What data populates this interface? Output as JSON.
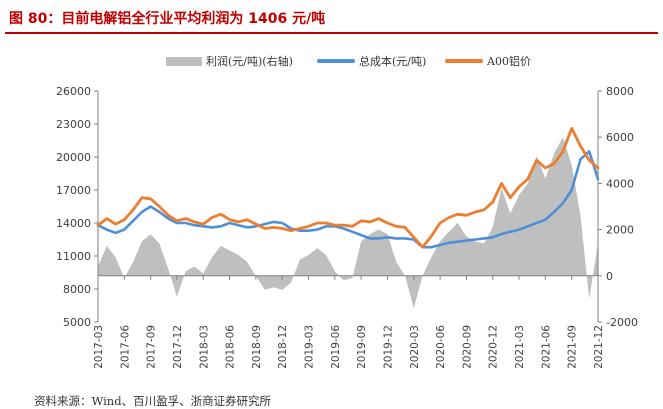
{
  "figure": {
    "title": "图 80：目前电解铝全行业平均利润为 1406 元/吨",
    "source": "资料来源：Wind、百川盈孚、浙商证券研究所"
  },
  "colors": {
    "title_red": "#c00000",
    "profit_area": "#bfbfbf",
    "cost_line": "#4f8fd6",
    "price_line": "#ed7d31",
    "axis": "#808080"
  },
  "chart_data": {
    "type": "line",
    "title": "",
    "xlabel": "",
    "ylabel": "",
    "legend_position": "top-center",
    "grid": false,
    "x_tick_labels": [
      "2017-03",
      "2017-06",
      "2017-09",
      "2017-12",
      "2018-03",
      "2018-06",
      "2018-09",
      "2018-12",
      "2019-03",
      "2019-06",
      "2019-09",
      "2019-12",
      "2020-03",
      "2020-06",
      "2020-09",
      "2020-12",
      "2021-03",
      "2021-06",
      "2021-09",
      "2021-12"
    ],
    "y_left": {
      "min": 5000,
      "max": 26000,
      "ticks": [
        5000,
        8000,
        11000,
        14000,
        17000,
        20000,
        23000,
        26000
      ]
    },
    "y_right": {
      "min": -2000,
      "max": 8000,
      "ticks": [
        -2000,
        0,
        2000,
        4000,
        6000,
        8000
      ]
    },
    "series": [
      {
        "name": "利润(元/吨)(右轴)",
        "type": "area",
        "axis": "right",
        "x": [
          "2017-03",
          "2017-04",
          "2017-05",
          "2017-06",
          "2017-07",
          "2017-08",
          "2017-09",
          "2017-10",
          "2017-11",
          "2017-12",
          "2018-01",
          "2018-02",
          "2018-03",
          "2018-04",
          "2018-05",
          "2018-06",
          "2018-07",
          "2018-08",
          "2018-09",
          "2018-10",
          "2018-11",
          "2018-12",
          "2019-01",
          "2019-02",
          "2019-03",
          "2019-04",
          "2019-05",
          "2019-06",
          "2019-07",
          "2019-08",
          "2019-09",
          "2019-10",
          "2019-11",
          "2019-12",
          "2020-01",
          "2020-02",
          "2020-03",
          "2020-04",
          "2020-05",
          "2020-06",
          "2020-07",
          "2020-08",
          "2020-09",
          "2020-10",
          "2020-11",
          "2020-12",
          "2021-01",
          "2021-02",
          "2021-03",
          "2021-04",
          "2021-05",
          "2021-06",
          "2021-07",
          "2021-08",
          "2021-09",
          "2021-10",
          "2021-11",
          "2021-12"
        ],
        "values": [
          400,
          1300,
          800,
          -100,
          600,
          1500,
          1800,
          1400,
          300,
          -900,
          200,
          400,
          100,
          800,
          1300,
          1100,
          900,
          600,
          0,
          -600,
          -500,
          -600,
          -300,
          700,
          900,
          1200,
          900,
          200,
          -200,
          -100,
          1500,
          1800,
          2000,
          1800,
          600,
          0,
          -1400,
          0,
          800,
          1500,
          1900,
          2300,
          1700,
          1500,
          1400,
          2100,
          3800,
          2700,
          3500,
          4000,
          5200,
          4200,
          5300,
          6000,
          4800,
          2600,
          -1000,
          1400
        ]
      },
      {
        "name": "总成本(元/吨)",
        "type": "line",
        "axis": "left",
        "x": [
          "2017-03",
          "2017-04",
          "2017-05",
          "2017-06",
          "2017-07",
          "2017-08",
          "2017-09",
          "2017-10",
          "2017-11",
          "2017-12",
          "2018-01",
          "2018-02",
          "2018-03",
          "2018-04",
          "2018-05",
          "2018-06",
          "2018-07",
          "2018-08",
          "2018-09",
          "2018-10",
          "2018-11",
          "2018-12",
          "2019-01",
          "2019-02",
          "2019-03",
          "2019-04",
          "2019-05",
          "2019-06",
          "2019-07",
          "2019-08",
          "2019-09",
          "2019-10",
          "2019-11",
          "2019-12",
          "2020-01",
          "2020-02",
          "2020-03",
          "2020-04",
          "2020-05",
          "2020-06",
          "2020-07",
          "2020-08",
          "2020-09",
          "2020-10",
          "2020-11",
          "2020-12",
          "2021-01",
          "2021-02",
          "2021-03",
          "2021-04",
          "2021-05",
          "2021-06",
          "2021-07",
          "2021-08",
          "2021-09",
          "2021-10",
          "2021-11",
          "2021-12"
        ],
        "values": [
          13800,
          13400,
          13100,
          13400,
          14200,
          15000,
          15500,
          15000,
          14400,
          14000,
          14000,
          13800,
          13700,
          13600,
          13700,
          14000,
          13800,
          13600,
          13700,
          13900,
          14100,
          14000,
          13500,
          13300,
          13300,
          13400,
          13700,
          13700,
          13500,
          13200,
          12900,
          12600,
          12600,
          12700,
          12600,
          12600,
          12500,
          11800,
          11800,
          12000,
          12200,
          12300,
          12400,
          12500,
          12600,
          12700,
          13000,
          13200,
          13400,
          13700,
          14000,
          14300,
          15000,
          15800,
          17000,
          19800,
          20500,
          18000
        ]
      },
      {
        "name": "A00铝价",
        "type": "line",
        "axis": "left",
        "x": [
          "2017-03",
          "2017-04",
          "2017-05",
          "2017-06",
          "2017-07",
          "2017-08",
          "2017-09",
          "2017-10",
          "2017-11",
          "2017-12",
          "2018-01",
          "2018-02",
          "2018-03",
          "2018-04",
          "2018-05",
          "2018-06",
          "2018-07",
          "2018-08",
          "2018-09",
          "2018-10",
          "2018-11",
          "2018-12",
          "2019-01",
          "2019-02",
          "2019-03",
          "2019-04",
          "2019-05",
          "2019-06",
          "2019-07",
          "2019-08",
          "2019-09",
          "2019-10",
          "2019-11",
          "2019-12",
          "2020-01",
          "2020-02",
          "2020-03",
          "2020-04",
          "2020-05",
          "2020-06",
          "2020-07",
          "2020-08",
          "2020-09",
          "2020-10",
          "2020-11",
          "2020-12",
          "2021-01",
          "2021-02",
          "2021-03",
          "2021-04",
          "2021-05",
          "2021-06",
          "2021-07",
          "2021-08",
          "2021-09",
          "2021-10",
          "2021-11",
          "2021-12"
        ],
        "values": [
          13800,
          14400,
          13900,
          14300,
          15200,
          16300,
          16200,
          15500,
          14700,
          14200,
          14400,
          14100,
          13900,
          14500,
          14800,
          14300,
          14100,
          14300,
          13900,
          13500,
          13600,
          13500,
          13300,
          13500,
          13700,
          14000,
          14000,
          13800,
          13800,
          13700,
          14200,
          14100,
          14400,
          14000,
          13700,
          13600,
          12700,
          11800,
          12800,
          14000,
          14500,
          14800,
          14700,
          15000,
          15200,
          15900,
          17600,
          16300,
          17300,
          18000,
          19700,
          19000,
          19400,
          20500,
          22600,
          21000,
          19700,
          19000
        ]
      }
    ]
  },
  "legend": {
    "profit": "利润(元/吨)(右轴)",
    "cost": "总成本(元/吨)",
    "price": "A00铝价"
  }
}
